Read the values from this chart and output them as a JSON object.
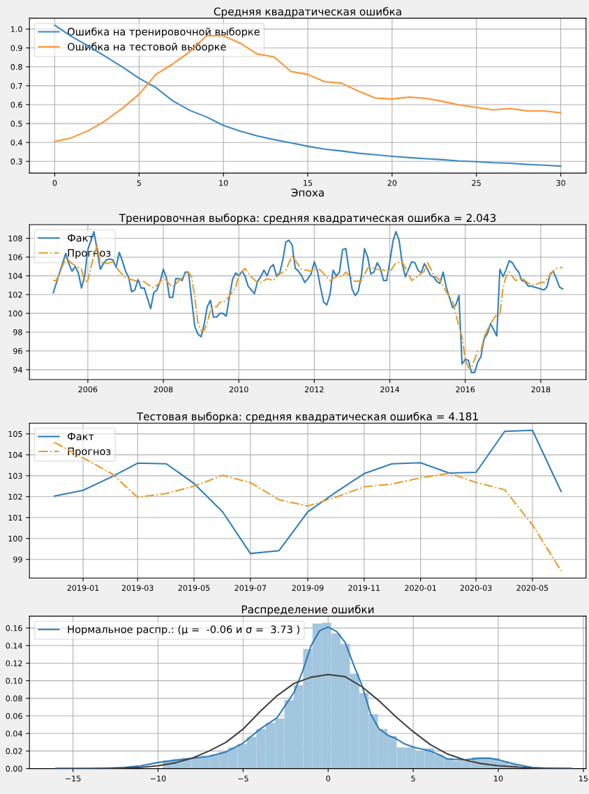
{
  "chart_data": [
    {
      "type": "line",
      "title": "Средняя квадратическая ошибка",
      "xlabel": "Эпоха",
      "x": [
        0,
        1,
        2,
        3,
        4,
        5,
        6,
        7,
        8,
        9,
        10,
        11,
        12,
        13,
        14,
        15,
        16,
        17,
        18,
        19,
        20,
        21,
        22,
        23,
        24,
        25,
        26,
        27,
        28,
        29,
        30
      ],
      "xlim": [
        -1.5,
        31.5
      ],
      "ylim": [
        0.238,
        1.057
      ],
      "xticks": [
        0,
        5,
        10,
        15,
        20,
        25,
        30
      ],
      "yticks": [
        0.3,
        0.4,
        0.5,
        0.6,
        0.7,
        0.8,
        0.9,
        {
          "value": 1,
          "label": "1.0"
        }
      ],
      "grid": true,
      "legend": "top left",
      "series": [
        {
          "name": "Ошибка на тренировочной выборке",
          "color": "#3c89c4",
          "values": [
            1.02,
            0.96,
            0.91,
            0.855,
            0.8,
            0.74,
            0.69,
            0.62,
            0.57,
            0.535,
            0.49,
            0.46,
            0.435,
            0.415,
            0.398,
            0.38,
            0.365,
            0.355,
            0.343,
            0.335,
            0.327,
            0.32,
            0.314,
            0.309,
            0.302,
            0.298,
            0.293,
            0.29,
            0.284,
            0.28,
            0.275
          ]
        },
        {
          "name": "Ошибка на тестовой выборке",
          "color": "#ff9330",
          "values": [
            0.405,
            0.425,
            0.463,
            0.515,
            0.58,
            0.655,
            0.76,
            0.815,
            0.88,
            0.965,
            0.965,
            0.925,
            0.868,
            0.853,
            0.775,
            0.76,
            0.722,
            0.714,
            0.672,
            0.635,
            0.63,
            0.64,
            0.633,
            0.617,
            0.598,
            0.585,
            0.572,
            0.58,
            0.567,
            0.567,
            0.557
          ]
        }
      ]
    },
    {
      "type": "line",
      "title": "Тренировочная выборка: средняя квадратическая ошибка = 2.043",
      "xlim": [
        "2004-06-15",
        "2019-03-15"
      ],
      "ylim": [
        92.95,
        109.45
      ],
      "xticks": [
        "2006",
        "2008",
        "2010",
        "2012",
        "2014",
        "2016",
        "2018"
      ],
      "yticks": [
        94,
        96,
        98,
        100,
        102,
        104,
        106,
        108
      ],
      "grid": true,
      "legend": "top left",
      "series": [
        {
          "name": "Факт",
          "color": "#2d7fbb",
          "line_style": "solid",
          "x": [
            "2005-02",
            "2005-06",
            "2005-07",
            "2005-08",
            "2005-09",
            "2005-10",
            "2005-11",
            "2005-12",
            "2006-01",
            "2006-03",
            "2006-04",
            "2006-05",
            "2006-06",
            "2006-07",
            "2006-08",
            "2006-09",
            "2006-10",
            "2006-11",
            "2006-12",
            "2007-01",
            "2007-02",
            "2007-03",
            "2007-04",
            "2007-05",
            "2007-06",
            "2007-07",
            "2007-09",
            "2007-10",
            "2007-11",
            "2007-12",
            "2008-01",
            "2008-02",
            "2008-03",
            "2008-04",
            "2008-05",
            "2008-06",
            "2008-07",
            "2008-08",
            "2008-09",
            "2008-10",
            "2008-11",
            "2008-12",
            "2009-01",
            "2009-02",
            "2009-03",
            "2009-04",
            "2009-05",
            "2009-06",
            "2009-07",
            "2009-08",
            "2009-09",
            "2009-10",
            "2009-11",
            "2009-12",
            "2010-01",
            "2010-02",
            "2010-03",
            "2010-04",
            "2010-05",
            "2010-06",
            "2010-07",
            "2010-08",
            "2010-09",
            "2010-10",
            "2010-11",
            "2010-12",
            "2011-01",
            "2011-02",
            "2011-03",
            "2011-04",
            "2011-05",
            "2011-06",
            "2011-07",
            "2011-08",
            "2011-09",
            "2011-10",
            "2011-11",
            "2011-12",
            "2012-01",
            "2012-02",
            "2012-03",
            "2012-04",
            "2012-05",
            "2012-06",
            "2012-07",
            "2012-08",
            "2012-09",
            "2012-10",
            "2012-11",
            "2012-12",
            "2013-01",
            "2013-02",
            "2013-03",
            "2013-04",
            "2013-05",
            "2013-06",
            "2013-07",
            "2013-08",
            "2013-09",
            "2013-10",
            "2013-11",
            "2013-12",
            "2014-01",
            "2014-02",
            "2014-03",
            "2014-04",
            "2014-05",
            "2014-06",
            "2014-07",
            "2014-08",
            "2014-09",
            "2014-10",
            "2014-11",
            "2014-12",
            "2015-01",
            "2015-02",
            "2015-03",
            "2015-04",
            "2015-05",
            "2015-06",
            "2015-07",
            "2015-08",
            "2015-09",
            "2015-10",
            "2015-11",
            "2015-12",
            "2016-01",
            "2016-02",
            "2016-03",
            "2016-04",
            "2016-05",
            "2016-06",
            "2016-07",
            "2016-08",
            "2016-09",
            "2016-10",
            "2016-11",
            "2016-12",
            "2017-01",
            "2017-02",
            "2017-03",
            "2017-04",
            "2017-05",
            "2017-06",
            "2017-07",
            "2017-08",
            "2017-09",
            "2017-10",
            "2017-11",
            "2017-12",
            "2018-01",
            "2018-02",
            "2018-03",
            "2018-04",
            "2018-05",
            "2018-06",
            "2018-07",
            "2018-08"
          ],
          "values": [
            102.2,
            106.4,
            105.3,
            104.5,
            105.0,
            104.3,
            102.7,
            104.0,
            106.8,
            108.7,
            106.8,
            104.7,
            105.3,
            105.7,
            105.8,
            105.7,
            104.9,
            106.5,
            105.6,
            104.5,
            103.8,
            102.3,
            102.5,
            103.6,
            102.7,
            102.7,
            100.5,
            102.2,
            102.5,
            103.4,
            104.7,
            103.8,
            101.7,
            101.7,
            103.7,
            103.7,
            103.5,
            104.4,
            104.4,
            101.5,
            98.6,
            97.8,
            97.5,
            98.9,
            100.7,
            101.4,
            99.6,
            99.6,
            100.0,
            100.0,
            99.7,
            101.7,
            103.6,
            104.3,
            104.0,
            104.5,
            104.0,
            102.9,
            102.5,
            102.1,
            103.4,
            103.9,
            104.6,
            104.0,
            104.9,
            105.2,
            104.0,
            104.3,
            105.6,
            107.6,
            107.8,
            107.3,
            104.8,
            104.5,
            104.0,
            103.3,
            103.7,
            104.2,
            105.5,
            104.5,
            102.8,
            101.2,
            100.9,
            102.0,
            104.6,
            104.0,
            104.4,
            106.8,
            106.9,
            104.7,
            102.6,
            101.9,
            102.3,
            104.0,
            106.9,
            106.0,
            104.2,
            104.4,
            105.4,
            104.8,
            103.5,
            103.5,
            105.5,
            107.7,
            108.7,
            107.8,
            105.3,
            103.9,
            104.7,
            105.5,
            105.4,
            104.6,
            104.3,
            105.3,
            104.7,
            104.0,
            103.9,
            103.4,
            103.2,
            104.4,
            102.8,
            101.7,
            100.6,
            100.9,
            101.9,
            94.6,
            95.1,
            95.0,
            93.7,
            93.7,
            94.8,
            95.4,
            97.3,
            97.8,
            98.9,
            98.3,
            97.6,
            104.7,
            103.9,
            104.7,
            105.6,
            105.4,
            104.8,
            104.4,
            103.5,
            103.4,
            102.9,
            102.9,
            102.8,
            102.7,
            102.6,
            102.5,
            102.8,
            104.2,
            104.5,
            103.7,
            102.8,
            102.6
          ]
        },
        {
          "name": "Прогноз",
          "color": "#eb9a28",
          "line_style": "dashdot",
          "x": [
            "2005-02",
            "2005-03",
            "2005-04",
            "2005-06",
            "2005-08",
            "2005-10",
            "2005-11",
            "2005-12",
            "2006-01",
            "2006-02",
            "2006-04",
            "2006-05",
            "2006-07",
            "2006-09",
            "2006-11",
            "2007-01",
            "2007-03",
            "2007-05",
            "2007-07",
            "2007-08",
            "2007-10",
            "2007-12",
            "2008-01",
            "2008-03",
            "2008-04",
            "2008-06",
            "2008-08",
            "2008-09",
            "2008-10",
            "2008-11",
            "2008-12",
            "2009-01",
            "2009-02",
            "2009-03",
            "2009-04",
            "2009-05",
            "2009-06",
            "2009-07",
            "2009-08",
            "2009-09",
            "2009-11",
            "2009-12",
            "2010-01",
            "2010-03",
            "2010-05",
            "2010-07",
            "2010-08",
            "2010-10",
            "2010-12",
            "2011-02",
            "2011-04",
            "2011-05",
            "2011-06",
            "2011-09",
            "2011-12",
            "2012-02",
            "2012-03",
            "2012-06",
            "2012-08",
            "2012-10",
            "2012-11",
            "2013-02",
            "2013-04",
            "2013-06",
            "2013-07",
            "2013-09",
            "2013-11",
            "2014-01",
            "2014-03",
            "2014-05",
            "2014-07",
            "2014-08",
            "2014-10",
            "2014-12",
            "2015-01",
            "2015-03",
            "2015-05",
            "2015-07",
            "2015-09",
            "2015-11",
            "2015-12",
            "2016-01",
            "2016-02",
            "2016-03",
            "2016-05",
            "2016-06",
            "2016-07",
            "2016-09",
            "2016-11",
            "2016-12",
            "2017-01",
            "2017-02",
            "2017-03",
            "2017-05",
            "2017-07",
            "2017-09",
            "2017-11",
            "2018-01",
            "2018-02",
            "2018-04",
            "2018-06",
            "2018-08"
          ],
          "values": [
            103.5,
            103.5,
            104.2,
            105.9,
            105.3,
            104.9,
            104.7,
            103.3,
            103.5,
            105.0,
            107.3,
            105.5,
            105.3,
            105.5,
            104.5,
            103.8,
            103.6,
            103.4,
            103.4,
            103.1,
            102.7,
            103.3,
            103.9,
            103.1,
            102.8,
            103.5,
            104.1,
            104.4,
            103.9,
            101.7,
            99.0,
            98.2,
            98.2,
            99.0,
            100.3,
            100.7,
            100.7,
            101.2,
            101.2,
            101.4,
            102.3,
            102.8,
            104.0,
            104.8,
            103.9,
            103.3,
            103.3,
            103.7,
            103.5,
            104.2,
            104.6,
            105.4,
            106.1,
            104.7,
            104.5,
            104.8,
            104.6,
            103.5,
            103.9,
            104.0,
            104.4,
            103.4,
            103.5,
            104.8,
            104.9,
            104.7,
            104.6,
            104.4,
            105.4,
            105.5,
            104.2,
            103.5,
            104.0,
            104.5,
            105.4,
            104.1,
            103.5,
            102.3,
            101.3,
            98.6,
            97.5,
            95.1,
            94.2,
            94.2,
            96.0,
            96.0,
            97.5,
            98.9,
            99.9,
            99.8,
            102.8,
            104.0,
            104.4,
            103.5,
            103.8,
            103.2,
            103.0,
            103.3,
            103.3,
            104.1,
            104.8,
            104.9
          ]
        }
      ]
    },
    {
      "type": "line",
      "title": "Тестовая выборка: средняя квадратическая ошибка = 4.181",
      "xlim": [
        "2018-11-04",
        "2020-06-28"
      ],
      "ylim": [
        98.11,
        105.51
      ],
      "xticks": [
        "2019-01",
        "2019-03",
        "2019-05",
        "2019-07",
        "2019-09",
        "2019-11",
        "2020-01",
        "2020-03",
        "2020-05"
      ],
      "yticks": [
        99,
        100,
        101,
        102,
        103,
        104,
        105
      ],
      "grid": true,
      "legend": "top left",
      "x": [
        "2018-12",
        "2019-01",
        "2019-02",
        "2019-03",
        "2019-04",
        "2019-05",
        "2019-06",
        "2019-07",
        "2019-08",
        "2019-09",
        "2019-10",
        "2019-11",
        "2019-12",
        "2020-01",
        "2020-02",
        "2020-03",
        "2020-04",
        "2020-05",
        "2020-06"
      ],
      "series": [
        {
          "name": "Факт",
          "color": "#2d7fbb",
          "line_style": "solid",
          "values": [
            102.03,
            102.3,
            102.95,
            103.6,
            103.57,
            102.63,
            101.27,
            99.28,
            99.42,
            101.27,
            102.2,
            103.1,
            103.57,
            103.62,
            103.13,
            103.16,
            105.12,
            105.17,
            102.25
          ]
        },
        {
          "name": "Прогноз",
          "color": "#eb9a28",
          "line_style": "dashdot",
          "values": [
            104.6,
            103.85,
            103.1,
            101.97,
            102.15,
            102.5,
            103.02,
            102.67,
            101.85,
            101.55,
            101.97,
            102.47,
            102.6,
            102.9,
            103.12,
            102.68,
            102.33,
            100.65,
            98.45
          ]
        }
      ]
    },
    {
      "type": "histogram",
      "title": "Распределение ошибки",
      "color": "#a3c6df",
      "xlim": [
        -17.56,
        15.16
      ],
      "ylim": [
        0,
        0.1735
      ],
      "xticks": [
        {
          "value": -15,
          "label": "−15"
        },
        {
          "value": -10,
          "label": "−10"
        },
        {
          "value": -5,
          "label": "−5"
        },
        0,
        5,
        10,
        15
      ],
      "yticks": [
        {
          "value": 0,
          "label": "0.00"
        },
        {
          "value": 0.02,
          "label": "0.02"
        },
        {
          "value": 0.04,
          "label": "0.04"
        },
        {
          "value": 0.06,
          "label": "0.06"
        },
        {
          "value": 0.08,
          "label": "0.08"
        },
        {
          "value": 0.1,
          "label": "0.10"
        },
        {
          "value": 0.12,
          "label": "0.12"
        },
        {
          "value": 0.14,
          "label": "0.14"
        },
        {
          "value": 0.16,
          "label": "0.16"
        }
      ],
      "grid": true,
      "legend": "top left",
      "bins": [
        -11.37,
        -10.82,
        -10.27,
        -9.72,
        -9.17,
        -8.62,
        -8.07,
        -7.52,
        -6.97,
        -6.42,
        -5.87,
        -5.32,
        -4.77,
        -4.22,
        -3.67,
        -3.12,
        -2.57,
        -2.02,
        -1.47,
        -0.92,
        -0.37,
        0.18,
        0.73,
        1.28,
        1.83,
        2.38,
        2.93,
        3.48,
        4.03,
        4.58,
        5.13,
        5.68,
        6.23,
        6.78,
        7.33,
        7.88,
        8.43,
        8.98,
        9.53,
        10.08,
        10.63,
        11.18,
        11.73
      ],
      "values": [
        null,
        null,
        null,
        0.0095,
        0.011,
        0.012,
        0.013,
        0.014,
        0.016,
        0.019,
        0.024,
        0.028,
        0.036,
        0.045,
        0.052,
        0.057,
        0.078,
        0.095,
        0.136,
        0.165,
        0.166,
        0.154,
        0.142,
        0.108,
        0.086,
        0.062,
        0.045,
        0.037,
        0.024,
        0.024,
        0.02,
        0.023,
        0.016,
        0.012,
        0.009,
        0.009,
        0.013,
        0.013,
        0.012,
        0.008,
        0.005,
        null
      ],
      "series": [
        {
          "type": "line",
          "name": "Нормальное распр.: (μ =  -0.06 и σ =  3.73 )",
          "color": "#2c7bb6",
          "x": [
            -16,
            -14,
            -13,
            -12,
            -11,
            -10,
            -9,
            -8,
            -7,
            -6,
            -5,
            -4,
            -3,
            -2,
            -1.5,
            -1,
            -0.5,
            0,
            0.5,
            1,
            1.5,
            2,
            2.5,
            3,
            3.5,
            4,
            4.5,
            5,
            6,
            6.5,
            7,
            8,
            9,
            9.5,
            10,
            11,
            12,
            13,
            14.3
          ],
          "values": [
            0,
            0.0001,
            0.0004,
            0.0012,
            0.0032,
            0.0069,
            0.0094,
            0.0118,
            0.014,
            0.019,
            0.029,
            0.045,
            0.058,
            0.087,
            0.111,
            0.14,
            0.157,
            0.161,
            0.156,
            0.1435,
            0.118,
            0.094,
            0.062,
            0.045,
            0.038,
            0.034,
            0.028,
            0.0245,
            0.02,
            0.016,
            0.011,
            0.01,
            0.0118,
            0.0118,
            0.01,
            0.005,
            0.0012,
            0.0002,
            0
          ]
        },
        {
          "type": "line",
          "color": "#404040",
          "x": [
            -16,
            -14,
            -12,
            -11,
            -10,
            -9,
            -8,
            -7,
            -6,
            -5,
            -4,
            -3,
            -2,
            -1,
            0,
            1,
            2,
            3,
            4,
            5,
            6,
            7,
            8,
            9,
            10,
            12,
            14.3
          ],
          "values": [
            0,
            0.0001,
            0.0006,
            0.0015,
            0.0032,
            0.0065,
            0.0118,
            0.02,
            0.03,
            0.045,
            0.065,
            0.083,
            0.097,
            0.104,
            0.107,
            0.1046,
            0.093,
            0.077,
            0.0586,
            0.042,
            0.0273,
            0.0167,
            0.01,
            0.0057,
            0.0032,
            0.0006,
            0
          ]
        }
      ]
    }
  ]
}
